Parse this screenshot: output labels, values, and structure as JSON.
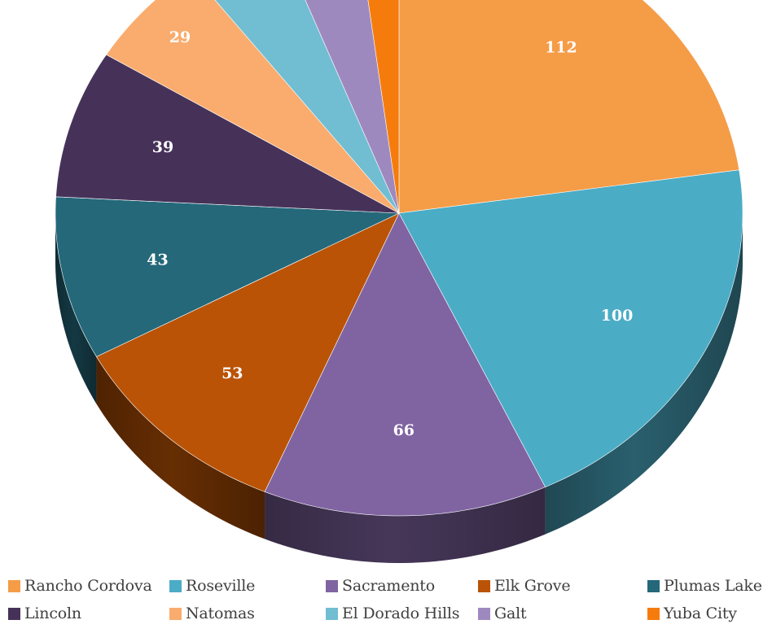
{
  "chart_data": {
    "type": "pie",
    "title": "",
    "categories": [
      "Rancho Cordova",
      "Roseville",
      "Sacramento",
      "Elk Grove",
      "Plumas Lake",
      "Lincoln",
      "Natomas",
      "El Dorado Hills",
      "Galt",
      "Yuba City"
    ],
    "values": [
      112,
      100,
      66,
      53,
      43,
      39,
      29,
      22,
      19,
      10
    ],
    "colors": [
      "#F59C47",
      "#4BACC6",
      "#8064A2",
      "#BA5306",
      "#24687A",
      "#463259",
      "#F9AC6D",
      "#71BDD2",
      "#9E89BF",
      "#F57C0C"
    ],
    "data_labels_shown": true,
    "legend_position": "bottom",
    "style": "3d-pie"
  }
}
